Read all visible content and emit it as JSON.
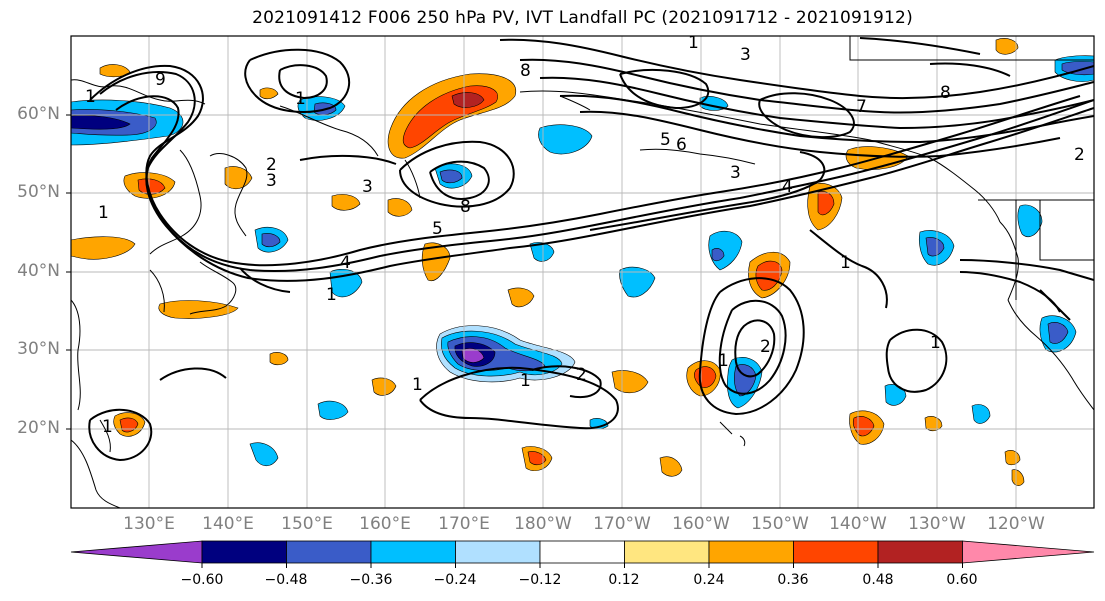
{
  "title": "2021091412 F006 250 hPa PV, IVT Landfall PC (2021091712 - 2021091912)",
  "latitude_labels": [
    "60°N",
    "50°N",
    "40°N",
    "30°N",
    "20°N"
  ],
  "longitude_labels": [
    "130°E",
    "140°E",
    "150°E",
    "160°E",
    "170°E",
    "180°W",
    "170°W",
    "160°W",
    "150°W",
    "140°W",
    "130°W",
    "120°W"
  ],
  "colorbar": {
    "tick_labels": [
      "−0.60",
      "−0.48",
      "−0.36",
      "−0.24",
      "−0.12",
      "0.12",
      "0.24",
      "0.36",
      "0.48",
      "0.60"
    ],
    "colors": [
      "#9a3ccc",
      "#00007f",
      "#3a5cc8",
      "#00bfff",
      "#b0e0ff",
      "#ffffff",
      "#ffe680",
      "#ffa500",
      "#ff4500",
      "#b22222",
      "#ff88aa"
    ]
  },
  "contour_labels": [
    "1",
    "2",
    "3",
    "4",
    "5",
    "6",
    "7",
    "8",
    "9"
  ]
}
